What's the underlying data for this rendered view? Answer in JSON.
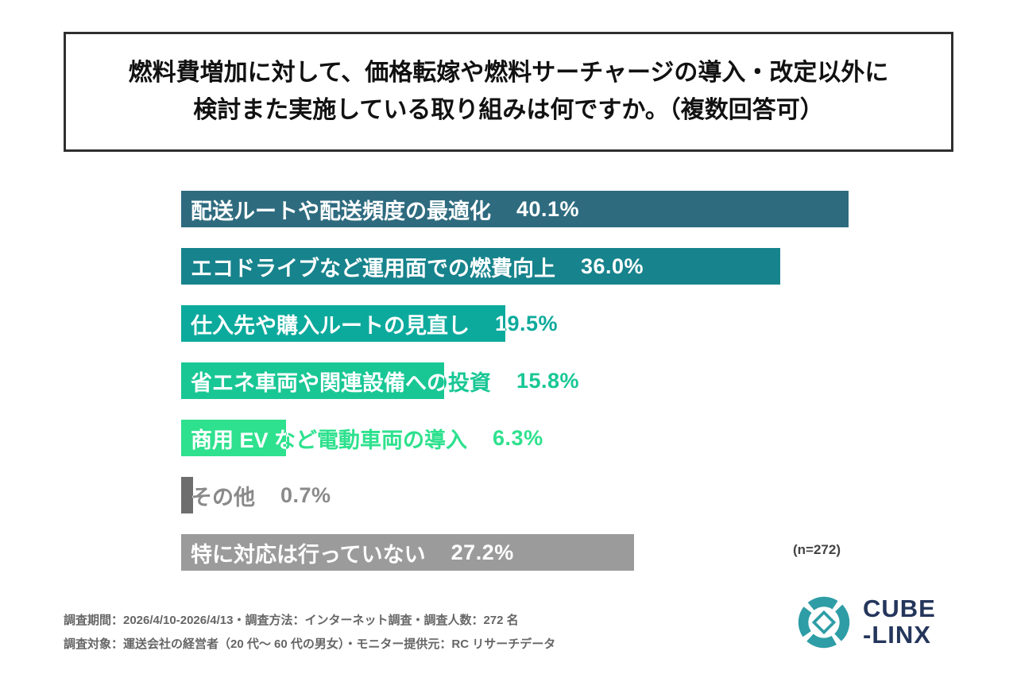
{
  "title": {
    "line1": "燃料費増加に対して、価格転嫁や燃料サーチャージの導入・改定以外に",
    "line2": "検討また実施している取り組みは何ですか。（複数回答可）"
  },
  "chart_data": {
    "type": "bar",
    "orientation": "horizontal",
    "max_value": 40.1,
    "categories": [
      "配送ルートや配送頻度の最適化",
      "エコドライブなど運用面での燃費向上",
      "仕入先や購入ルートの見直し",
      "省エネ車両や関連設備への投資",
      "商用 EV など電動車両の導入",
      "その他",
      "特に対応は行っていない"
    ],
    "values": [
      40.1,
      36.0,
      19.5,
      15.8,
      6.3,
      0.7,
      27.2
    ],
    "value_labels": [
      "40.1%",
      "36.0%",
      "19.5%",
      "15.8%",
      "6.3%",
      "0.7%",
      "27.2%"
    ],
    "colors": [
      "#2E6B7F",
      "#17838C",
      "#0CAA9C",
      "#19C795",
      "#2EE18E",
      "#6E6E6E",
      "#9B9B9B"
    ],
    "label_colors": [
      "#2E6B7F",
      "#17838C",
      "#0CAA9C",
      "#19C795",
      "#2EE18E",
      "#8A8A8A",
      "#9B9B9B"
    ],
    "note": "(n=272)"
  },
  "footer": {
    "line1": "調査期間：2026/4/10-2026/4/13・調査方法：インターネット調査・調査人数：272 名",
    "line2": "調査対象：運送会社の経営者（20 代〜 60 代の男女）・モニター提供元：RC リサーチデータ"
  },
  "logo": {
    "line1": "CUBE",
    "line2": "-LINX",
    "icon_color": "#2E9DA6"
  }
}
